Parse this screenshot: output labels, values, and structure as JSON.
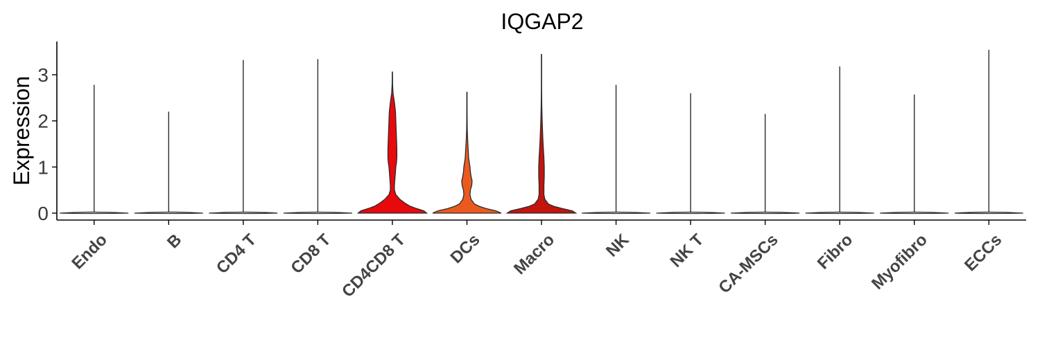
{
  "chart_data": {
    "type": "violin",
    "title": "IQGAP2",
    "xlabel": "",
    "ylabel": "Expression",
    "ylim": [
      -0.15,
      3.7
    ],
    "yticks": [
      0,
      1,
      2,
      3
    ],
    "grid": false,
    "legend": "none",
    "categories": [
      "Endo",
      "B",
      "CD4 T",
      "CD8 T",
      "CD4CD8 T",
      "DCs",
      "Macro",
      "NK",
      "NK T",
      "CA-MSCs",
      "Fibro",
      "Myofibro",
      "ECCs"
    ],
    "max_values": [
      2.78,
      2.2,
      3.32,
      3.34,
      3.06,
      2.62,
      3.44,
      2.78,
      2.6,
      2.15,
      3.18,
      2.57,
      3.54
    ],
    "colors": [
      "#ffffff",
      "#ffffff",
      "#ffffff",
      "#ffffff",
      "#e8090c",
      "#ea5a1f",
      "#c3140e",
      "#ffffff",
      "#ffffff",
      "#ffffff",
      "#ffffff",
      "#ffffff",
      "#ffffff"
    ],
    "densities": {
      "CD4CD8 T": [
        [
          0,
          1.0
        ],
        [
          0.05,
          0.92
        ],
        [
          0.1,
          0.7
        ],
        [
          0.15,
          0.52
        ],
        [
          0.22,
          0.36
        ],
        [
          0.3,
          0.22
        ],
        [
          0.4,
          0.1
        ],
        [
          0.5,
          0.06
        ],
        [
          0.6,
          0.06
        ],
        [
          0.7,
          0.07
        ],
        [
          0.8,
          0.08
        ],
        [
          0.9,
          0.09
        ],
        [
          1.0,
          0.1
        ],
        [
          1.1,
          0.12
        ],
        [
          1.2,
          0.13
        ],
        [
          1.4,
          0.13
        ],
        [
          1.6,
          0.12
        ],
        [
          1.8,
          0.11
        ],
        [
          2.0,
          0.1
        ],
        [
          2.2,
          0.09
        ],
        [
          2.4,
          0.06
        ],
        [
          2.5,
          0.04
        ],
        [
          2.6,
          0.02
        ],
        [
          2.8,
          0.006
        ],
        [
          3.06,
          0.002
        ]
      ],
      "DCs": [
        [
          0,
          1.0
        ],
        [
          0.05,
          0.85
        ],
        [
          0.1,
          0.55
        ],
        [
          0.15,
          0.35
        ],
        [
          0.2,
          0.22
        ],
        [
          0.3,
          0.12
        ],
        [
          0.4,
          0.09
        ],
        [
          0.5,
          0.1
        ],
        [
          0.6,
          0.14
        ],
        [
          0.7,
          0.15
        ],
        [
          0.8,
          0.12
        ],
        [
          0.9,
          0.1
        ],
        [
          1.0,
          0.09
        ],
        [
          1.1,
          0.07
        ],
        [
          1.2,
          0.05
        ],
        [
          1.4,
          0.035
        ],
        [
          1.6,
          0.02
        ],
        [
          1.8,
          0.01
        ],
        [
          2.0,
          0.006
        ],
        [
          2.3,
          0.003
        ],
        [
          2.62,
          0.002
        ]
      ],
      "Macro": [
        [
          0,
          1.0
        ],
        [
          0.05,
          0.9
        ],
        [
          0.1,
          0.6
        ],
        [
          0.15,
          0.35
        ],
        [
          0.2,
          0.2
        ],
        [
          0.3,
          0.1
        ],
        [
          0.4,
          0.07
        ],
        [
          0.6,
          0.07
        ],
        [
          0.8,
          0.08
        ],
        [
          1.0,
          0.08
        ],
        [
          1.2,
          0.07
        ],
        [
          1.4,
          0.055
        ],
        [
          1.6,
          0.04
        ],
        [
          1.8,
          0.03
        ],
        [
          2.0,
          0.02
        ],
        [
          2.3,
          0.01
        ],
        [
          2.6,
          0.005
        ],
        [
          3.0,
          0.003
        ],
        [
          3.44,
          0.002
        ]
      ]
    }
  }
}
